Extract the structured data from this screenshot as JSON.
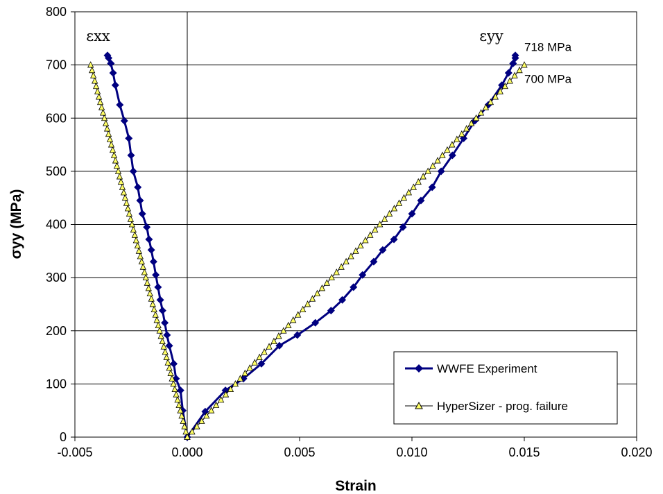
{
  "chart_data": {
    "type": "line",
    "xlabel": "Strain",
    "ylabel": "σyy (MPa)",
    "xlim": [
      -0.005,
      0.02
    ],
    "ylim": [
      0,
      800
    ],
    "x_ticks": [
      "-0.005",
      "0.000",
      "0.005",
      "0.010",
      "0.015",
      "0.020"
    ],
    "y_ticks": [
      "0",
      "100",
      "200",
      "300",
      "400",
      "500",
      "600",
      "700",
      "800"
    ],
    "grid": "horizontal",
    "legend_position": "bottom-right",
    "series": [
      {
        "name": "WWFE Experiment",
        "color": "#000080",
        "marker": "diamond",
        "branches": [
          {
            "label": "εxx",
            "points": [
              [
                0,
                0
              ],
              [
                -0.0002,
                50
              ],
              [
                -0.0003,
                88
              ],
              [
                -0.0005,
                110
              ],
              [
                -0.0006,
                138
              ],
              [
                -0.0008,
                172
              ],
              [
                -0.0009,
                192
              ],
              [
                -0.001,
                215
              ],
              [
                -0.0011,
                238
              ],
              [
                -0.0012,
                258
              ],
              [
                -0.0013,
                282
              ],
              [
                -0.0014,
                305
              ],
              [
                -0.0015,
                330
              ],
              [
                -0.0016,
                352
              ],
              [
                -0.0017,
                372
              ],
              [
                -0.0018,
                395
              ],
              [
                -0.002,
                420
              ],
              [
                -0.0021,
                445
              ],
              [
                -0.0022,
                470
              ],
              [
                -0.0024,
                500
              ],
              [
                -0.0025,
                530
              ],
              [
                -0.0026,
                562
              ],
              [
                -0.0028,
                595
              ],
              [
                -0.003,
                625
              ],
              [
                -0.0032,
                662
              ],
              [
                -0.0033,
                685
              ],
              [
                -0.0034,
                703
              ],
              [
                -0.0035,
                713
              ],
              [
                -0.00355,
                718
              ]
            ]
          },
          {
            "label": "εyy",
            "points": [
              [
                0,
                0
              ],
              [
                0.0008,
                48
              ],
              [
                0.0017,
                88
              ],
              [
                0.0025,
                110
              ],
              [
                0.0033,
                138
              ],
              [
                0.0041,
                172
              ],
              [
                0.0049,
                192
              ],
              [
                0.0057,
                215
              ],
              [
                0.0064,
                238
              ],
              [
                0.0069,
                258
              ],
              [
                0.0074,
                282
              ],
              [
                0.0078,
                305
              ],
              [
                0.0083,
                330
              ],
              [
                0.0087,
                352
              ],
              [
                0.0092,
                372
              ],
              [
                0.0096,
                395
              ],
              [
                0.01,
                420
              ],
              [
                0.0104,
                445
              ],
              [
                0.0109,
                470
              ],
              [
                0.0113,
                500
              ],
              [
                0.0118,
                530
              ],
              [
                0.0123,
                562
              ],
              [
                0.0128,
                595
              ],
              [
                0.0134,
                625
              ],
              [
                0.014,
                662
              ],
              [
                0.0143,
                685
              ],
              [
                0.0145,
                703
              ],
              [
                0.0146,
                713
              ],
              [
                0.0146,
                718
              ]
            ]
          }
        ]
      },
      {
        "name": "HyperSizer - prog. failure",
        "color": "#000000",
        "fill": "#ffff66",
        "marker": "triangle",
        "branches": [
          {
            "label": "εxx",
            "end": [
              -0.0043,
              700
            ],
            "steps": 70
          },
          {
            "label": "εyy",
            "end": [
              0.015,
              700
            ],
            "steps": 70
          }
        ]
      }
    ],
    "annotations": [
      {
        "text": "εxx",
        "at": [
          -0.0045,
          745
        ],
        "style": "big"
      },
      {
        "text": "εyy",
        "at": [
          0.013,
          745
        ],
        "style": "big"
      },
      {
        "text": "718 MPa",
        "at": [
          0.015,
          726
        ],
        "style": "small"
      },
      {
        "text": "700 MPa",
        "at": [
          0.015,
          666
        ],
        "style": "small"
      }
    ]
  }
}
